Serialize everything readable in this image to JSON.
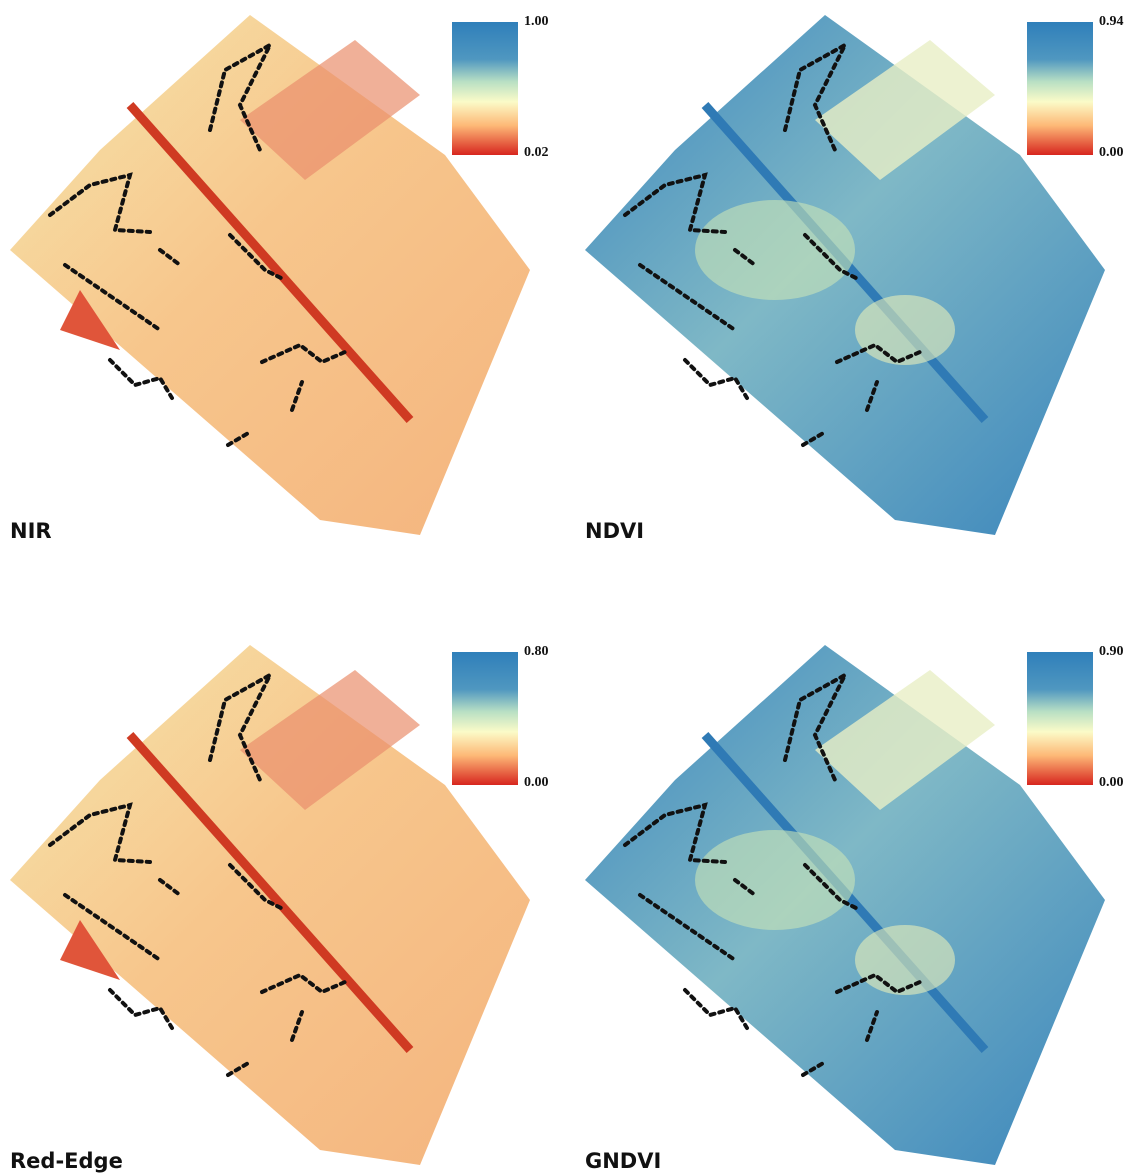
{
  "panels": [
    {
      "label": "NIR",
      "legend_max": "1.00",
      "legend_min": "0.02"
    },
    {
      "label": "NDVI",
      "legend_max": "0.94",
      "legend_min": "0.00"
    },
    {
      "label": "Red-Edge",
      "legend_max": "0.80",
      "legend_min": "0.00"
    },
    {
      "label": "GNDVI",
      "legend_max": "0.90",
      "legend_min": "0.00"
    }
  ]
}
